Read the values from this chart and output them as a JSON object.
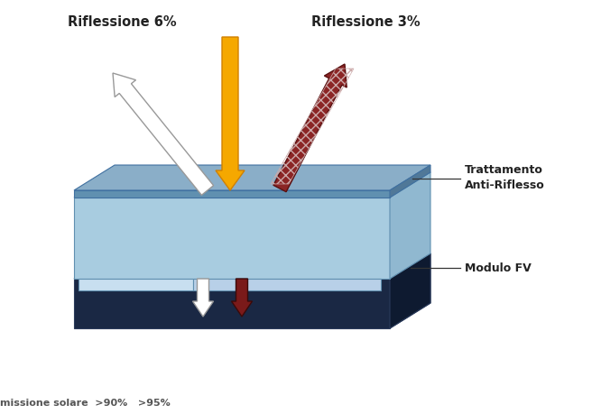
{
  "bg_color": "#ffffff",
  "label_riflessione_6": "Riflessione 6%",
  "label_riflessione_3": "Riflessione 3%",
  "label_trattamento": "Trattamento\nAnti-Riflesso",
  "label_modulo": "Modulo FV",
  "label_bottom": "missione solare  >90%   >95%",
  "glass_top_face": "#c5dff0",
  "glass_front_face": "#a8cce0",
  "glass_right_face": "#90b8d0",
  "ar_layer_top": "#8aaec8",
  "ar_layer_front": "#6090b0",
  "ar_layer_right": "#507898",
  "module_top_face": "#1e3050",
  "module_front_face": "#1a2844",
  "module_right_face": "#0e1a30",
  "module_ledge_color": "#8aaed0",
  "arrow_yellow": "#f5a800",
  "arrow_yellow_edge": "#d08000",
  "arrow_white": "#ffffff",
  "arrow_white_edge": "#999999",
  "arrow_red_fill": "#8b2525",
  "arrow_red_edge": "#5a1010",
  "line_color": "#333333",
  "text_color": "#222222",
  "bottom_text_color": "#555555"
}
